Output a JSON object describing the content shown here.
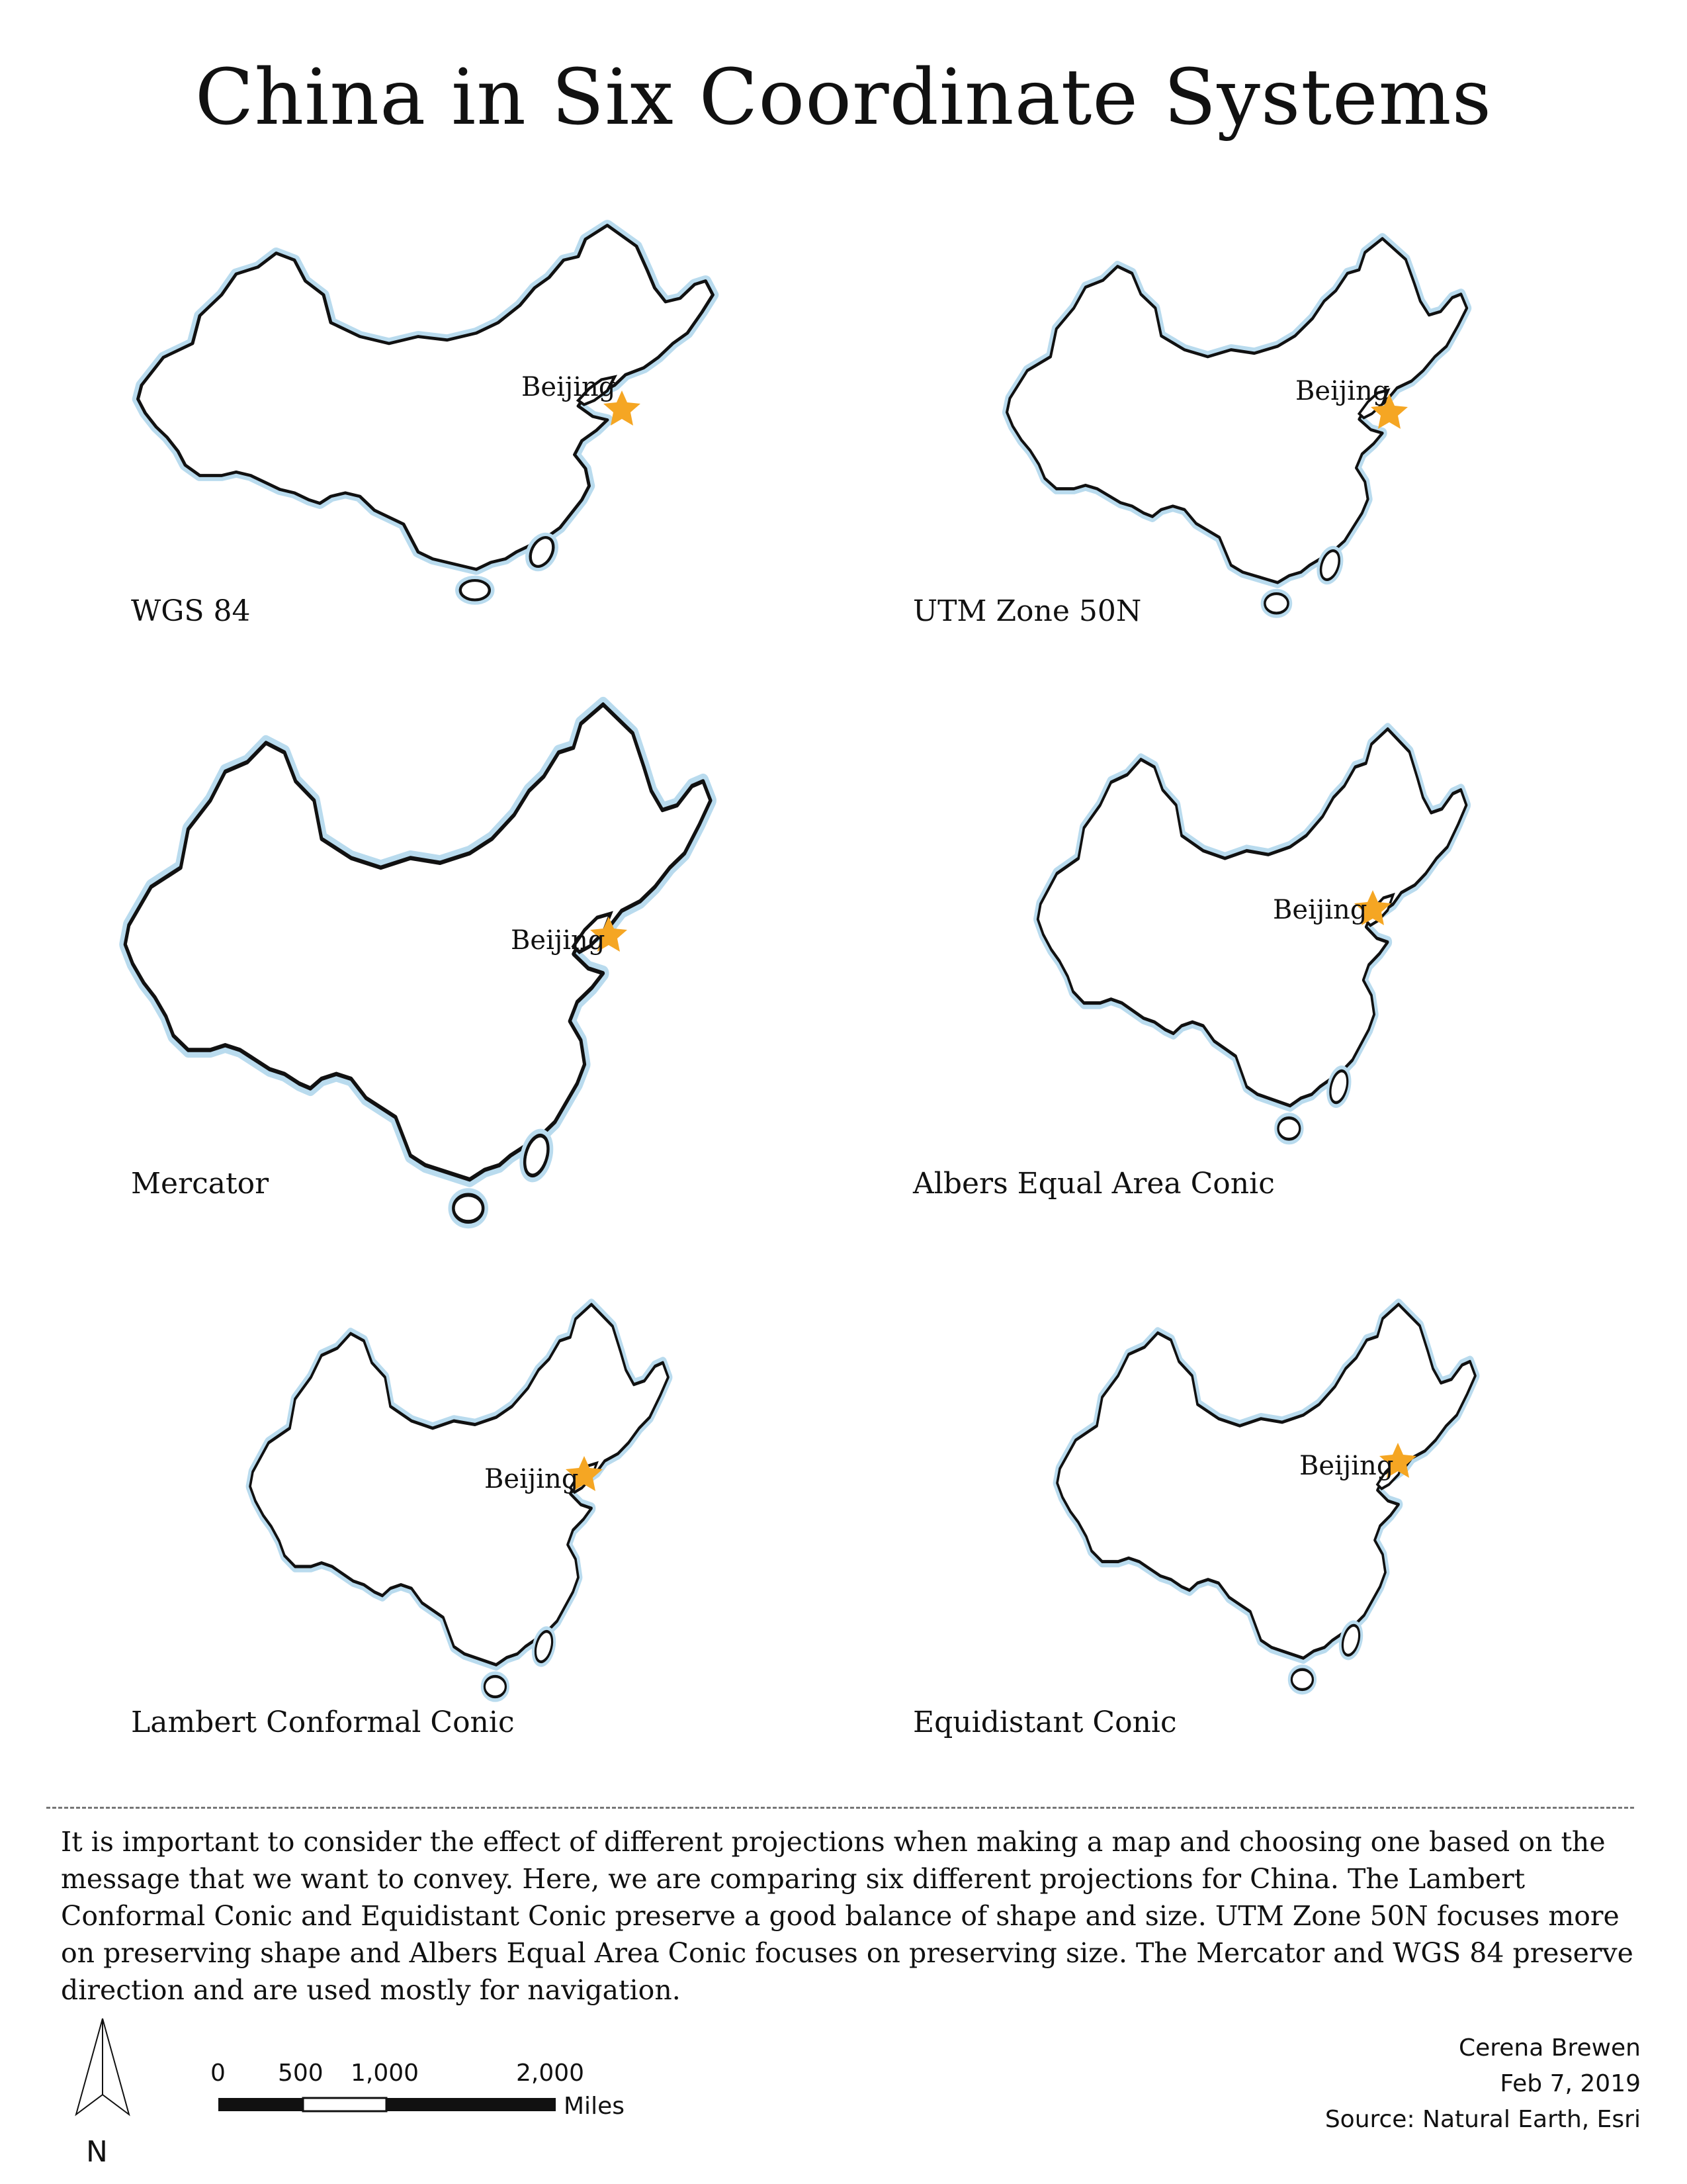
{
  "title": "China in Six Coordinate Systems",
  "city_label": "Beijing",
  "maps": [
    {
      "projection": "WGS 84"
    },
    {
      "projection": "UTM Zone 50N"
    },
    {
      "projection": "Mercator"
    },
    {
      "projection": "Albers Equal Area Conic"
    },
    {
      "projection": "Lambert Conformal Conic"
    },
    {
      "projection": "Equidistant Conic"
    }
  ],
  "description": "It is important to consider the effect of different projections when making a map and choosing one based on the message that we want to convey. Here, we are comparing six different projections for China. The Lambert Conformal Conic and Equidistant Conic preserve a good balance of shape and size.  UTM Zone 50N focuses more on preserving shape and Albers Equal Area Conic focuses on preserving  size. The Mercator and WGS 84 preserve direction and are used mostly  for navigation.",
  "credits": {
    "author": "Cerena Brewen",
    "date": "Feb 7, 2019",
    "source": "Source: Natural Earth, Esri"
  },
  "north_arrow": {
    "letter": "N",
    "icon": "north-arrow-icon"
  },
  "scale_bar": {
    "ticks": [
      "0",
      "500",
      "1,000",
      "2,000"
    ],
    "tick_values": [
      0,
      500,
      1000,
      2000
    ],
    "unit": "Miles"
  },
  "colors": {
    "outline": "#111111",
    "halo": "#b9dbee",
    "star": "#f5a623"
  }
}
